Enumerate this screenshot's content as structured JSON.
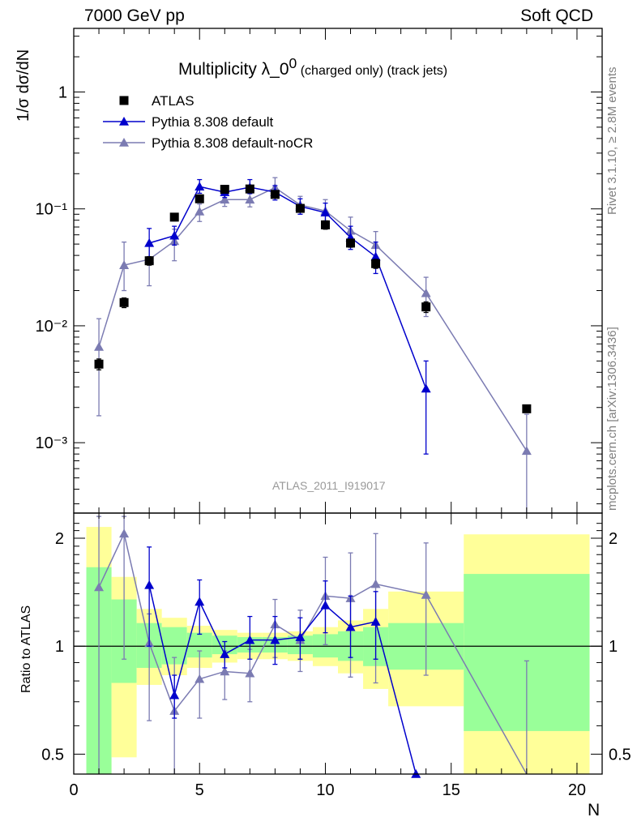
{
  "header": {
    "left": "7000 GeV pp",
    "right": "Soft QCD"
  },
  "side_labels": {
    "rivet": "Rivet 3.1.10, ≥ 2.8M events",
    "mcplots": "mcplots.cern.ch [arXiv:1306.3436]"
  },
  "analysis_id": "ATLAS_2011_I919017",
  "colors": {
    "data": "#000000",
    "default": "#0000cc",
    "nocr": "#7b7bb2",
    "band_green": "#99ff99",
    "band_yellow": "#ffff99"
  },
  "chart_data": [
    {
      "type": "scatter",
      "title": "Multiplicity λ_0",
      "title_sup": "0",
      "title_sub": " (charged only) (track jets)",
      "ylabel": "1/σ dσ/dN",
      "yscale": "log",
      "ylim": [
        0.00025,
        3.5
      ],
      "xlim": [
        0,
        21
      ],
      "y_ticks": [
        {
          "value": 1,
          "label": "1"
        },
        {
          "value": 0.1,
          "label": "10⁻¹"
        },
        {
          "value": 0.01,
          "label": "10⁻²"
        },
        {
          "value": 0.001,
          "label": "10⁻³"
        }
      ],
      "legend_position": "top-left",
      "series": [
        {
          "name": "ATLAS",
          "marker": "square",
          "x": [
            1,
            2,
            3,
            4,
            5,
            6,
            7,
            8,
            9,
            10,
            11,
            12,
            14,
            18
          ],
          "y": [
            0.0047,
            0.0158,
            0.036,
            0.085,
            0.122,
            0.147,
            0.148,
            0.133,
            0.101,
            0.073,
            0.051,
            0.034,
            0.0145,
            0.00195
          ],
          "yerr": [
            0.0005,
            0.0015,
            0.003,
            0.006,
            0.008,
            0.008,
            0.008,
            0.008,
            0.007,
            0.006,
            0.004,
            0.003,
            0.0015,
            0.0001
          ]
        },
        {
          "name": "Pythia 8.308 default",
          "marker": "triangle",
          "x": [
            3,
            4,
            5,
            6,
            7,
            8,
            9,
            10,
            11,
            12,
            14
          ],
          "y": [
            0.051,
            0.059,
            0.155,
            0.139,
            0.153,
            0.139,
            0.105,
            0.093,
            0.057,
            0.039,
            0.0029
          ],
          "y_low": [
            0.037,
            0.049,
            0.136,
            0.125,
            0.135,
            0.119,
            0.09,
            0.075,
            0.045,
            0.028,
            0.0008
          ],
          "y_high": [
            0.068,
            0.071,
            0.178,
            0.158,
            0.178,
            0.158,
            0.122,
            0.112,
            0.071,
            0.052,
            0.005
          ]
        },
        {
          "name": "Pythia 8.308 default-noCR",
          "marker": "triangle",
          "x": [
            1,
            2,
            3,
            4,
            5,
            6,
            7,
            8,
            9,
            10,
            11,
            12,
            14,
            18
          ],
          "y": [
            0.0066,
            0.033,
            0.037,
            0.053,
            0.095,
            0.12,
            0.12,
            0.152,
            0.108,
            0.096,
            0.065,
            0.049,
            0.019,
            0.00085
          ],
          "y_low": [
            0.0017,
            0.02,
            0.022,
            0.036,
            0.078,
            0.105,
            0.104,
            0.125,
            0.09,
            0.07,
            0.048,
            0.035,
            0.012,
            0.00022
          ],
          "y_high": [
            0.0115,
            0.052,
            0.048,
            0.067,
            0.11,
            0.136,
            0.137,
            0.185,
            0.128,
            0.12,
            0.085,
            0.064,
            0.026,
            0.00175
          ]
        }
      ]
    },
    {
      "type": "scatter",
      "title": "",
      "xlabel": "N",
      "ylabel": "Ratio to ATLAS",
      "yscale": "log",
      "ylim": [
        0.44,
        2.35
      ],
      "xlim": [
        0,
        21
      ],
      "x_ticks": [
        0,
        5,
        10,
        15,
        20
      ],
      "y_ticks": [
        {
          "value": 0.5,
          "label": "0.5"
        },
        {
          "value": 1,
          "label": "1"
        },
        {
          "value": 2,
          "label": "2"
        }
      ],
      "reference_line": 1,
      "bands": {
        "edges": [
          0.5,
          1.5,
          2.5,
          3.5,
          4.5,
          5.5,
          6.5,
          7.5,
          8.5,
          9.5,
          10.5,
          11.5,
          12.5,
          15.5,
          20.5
        ],
        "green_low": [
          0.37,
          0.79,
          0.87,
          0.89,
          0.93,
          0.95,
          0.96,
          0.96,
          0.95,
          0.93,
          0.91,
          0.88,
          0.86,
          0.58
        ],
        "green_high": [
          1.66,
          1.35,
          1.16,
          1.13,
          1.09,
          1.07,
          1.06,
          1.06,
          1.07,
          1.08,
          1.1,
          1.13,
          1.16,
          1.59
        ],
        "yellow_low": [
          0.0,
          0.49,
          0.78,
          0.83,
          0.87,
          0.9,
          0.92,
          0.92,
          0.91,
          0.88,
          0.84,
          0.76,
          0.68,
          0.0
        ],
        "yellow_high": [
          2.15,
          1.56,
          1.27,
          1.2,
          1.14,
          1.11,
          1.09,
          1.09,
          1.1,
          1.13,
          1.18,
          1.27,
          1.42,
          2.05
        ]
      },
      "series": [
        {
          "name": "Pythia 8.308 default",
          "x": [
            3,
            4,
            5,
            6,
            7,
            8,
            9,
            10,
            11,
            12,
            13.6
          ],
          "y": [
            1.48,
            0.73,
            1.33,
            0.95,
            1.04,
            1.04,
            1.06,
            1.3,
            1.13,
            1.17,
            0.44
          ],
          "y_low": [
            1.0,
            0.63,
            1.08,
            0.87,
            0.92,
            0.89,
            0.92,
            1.09,
            0.93,
            0.92,
            0.44
          ],
          "y_high": [
            1.89,
            0.83,
            1.53,
            1.03,
            1.21,
            1.21,
            1.2,
            1.52,
            1.38,
            1.42,
            0.44
          ]
        },
        {
          "name": "Pythia 8.308 default-noCR",
          "x": [
            1,
            2,
            3,
            4,
            5,
            6,
            7,
            8,
            9,
            10,
            11,
            12,
            14,
            18
          ],
          "y": [
            1.46,
            2.06,
            1.02,
            0.66,
            0.81,
            0.85,
            0.84,
            1.15,
            1.04,
            1.38,
            1.36,
            1.49,
            1.39,
            0.43
          ],
          "y_low": [
            0.37,
            0.92,
            0.62,
            0.37,
            0.63,
            0.71,
            0.7,
            0.93,
            0.85,
            1.01,
            0.82,
            0.79,
            0.83,
            0.35
          ],
          "y_high": [
            2.3,
            2.3,
            1.23,
            0.93,
            0.97,
            0.97,
            0.98,
            1.35,
            1.26,
            1.77,
            1.82,
            2.06,
            1.94,
            0.91
          ]
        }
      ]
    }
  ]
}
